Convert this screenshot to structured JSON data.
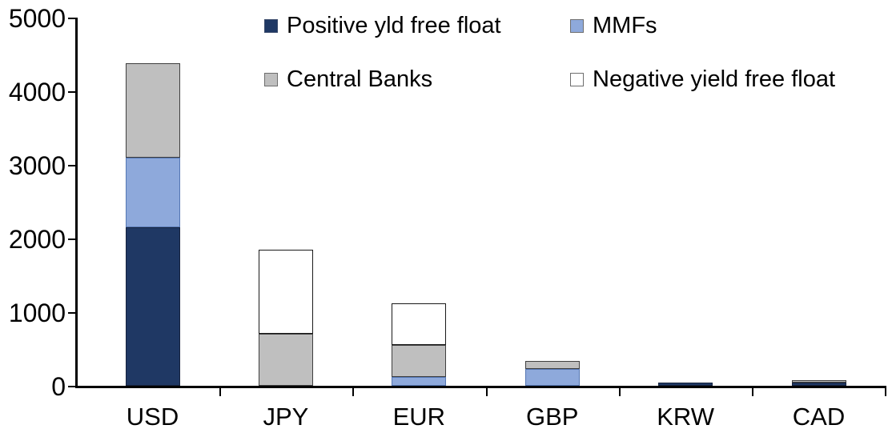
{
  "chart_data": {
    "type": "bar",
    "stacked": true,
    "title": "",
    "xlabel": "",
    "ylabel": "",
    "categories": [
      "USD",
      "JPY",
      "EUR",
      "GBP",
      "KRW",
      "CAD"
    ],
    "series": [
      {
        "name": "Positive yld free float",
        "key": "positive-yld-free-float",
        "color": "#1F3864",
        "border_color": "#16233E",
        "values": [
          2150,
          0,
          0,
          0,
          45,
          40
        ]
      },
      {
        "name": "MMFs",
        "key": "mmfs",
        "color": "#8EA9DB",
        "border_color": "#5577B3",
        "values": [
          950,
          0,
          115,
          225,
          0,
          0
        ]
      },
      {
        "name": "Central Banks",
        "key": "central-banks",
        "color": "#BFBFBF",
        "border_color": "#3F3F3F",
        "values": [
          1280,
          710,
          440,
          115,
          0,
          40
        ]
      },
      {
        "name": "Negative yield free float",
        "key": "negative-yield-free-float",
        "color": "#FFFFFF",
        "border_color": "#1A1A1A",
        "values": [
          0,
          1140,
          565,
          0,
          0,
          0
        ]
      }
    ],
    "totals": [
      4380,
      1850,
      1120,
      340,
      45,
      80
    ],
    "ylim": [
      0,
      5000
    ],
    "ytick_values": [
      0,
      1000,
      2000,
      3000,
      4000,
      5000
    ],
    "ytick_labels": [
      "0",
      "1000",
      "2000",
      "3000",
      "4000",
      "5000"
    ],
    "grid": false,
    "legend_position": "top",
    "axis_color": "#000000",
    "background_color": "#FFFFFF"
  }
}
